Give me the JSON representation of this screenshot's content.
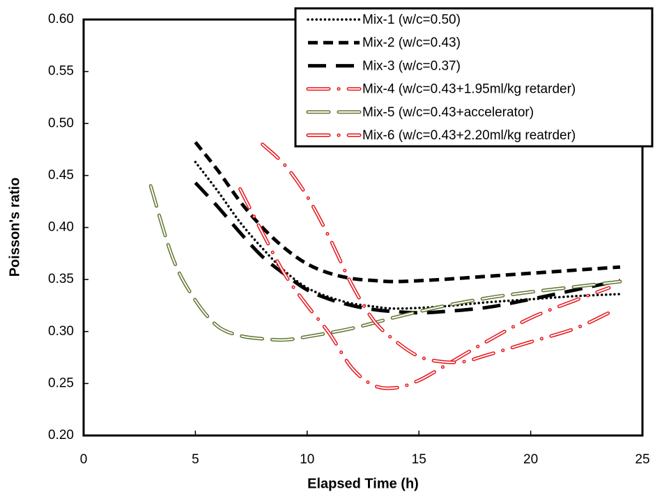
{
  "chart_data": {
    "type": "line",
    "x_label": "Elapsed Time (h)",
    "y_label": "Poisson's ratio",
    "xlim": [
      0,
      25
    ],
    "xticks": [
      0,
      5,
      10,
      15,
      20,
      25
    ],
    "ylim": [
      0.2,
      0.6
    ],
    "yticks": [
      {
        "value": 0.2,
        "label": "0.20"
      },
      {
        "value": 0.25,
        "label": "0.25"
      },
      {
        "value": 0.3,
        "label": "0.30"
      },
      {
        "value": 0.35,
        "label": "0.35"
      },
      {
        "value": 0.4,
        "label": "0.40"
      },
      {
        "value": 0.45,
        "label": "0.45"
      },
      {
        "value": 0.5,
        "label": "0.50"
      },
      {
        "value": 0.55,
        "label": "0.55"
      },
      {
        "value": 0.6,
        "label": "0.60"
      }
    ],
    "legend": "upper right",
    "series": [
      {
        "name": "Mix-1 (w/c=0.50)",
        "color": "#000000",
        "line_style": "dotted",
        "x": [
          5,
          6,
          7,
          8,
          9,
          10,
          11,
          12,
          13,
          14,
          16,
          18,
          20,
          22,
          24
        ],
        "values": [
          0.463,
          0.435,
          0.405,
          0.38,
          0.358,
          0.342,
          0.333,
          0.327,
          0.324,
          0.322,
          0.324,
          0.328,
          0.331,
          0.334,
          0.336
        ]
      },
      {
        "name": "Mix-2 (w/c=0.43)",
        "color": "#000000",
        "line_style": "dashed",
        "x": [
          5,
          6,
          7,
          8,
          9,
          10,
          11,
          12,
          13,
          14,
          16,
          18,
          20,
          22,
          24
        ],
        "values": [
          0.482,
          0.455,
          0.425,
          0.4,
          0.38,
          0.365,
          0.356,
          0.351,
          0.349,
          0.348,
          0.35,
          0.353,
          0.356,
          0.359,
          0.362
        ]
      },
      {
        "name": "Mix-3 (w/c=0.37)",
        "color": "#000000",
        "line_style": "long-dash",
        "x": [
          5,
          6,
          7,
          8,
          9,
          10,
          11,
          12,
          13,
          14,
          15,
          16,
          18,
          20,
          22,
          24
        ],
        "values": [
          0.443,
          0.42,
          0.395,
          0.372,
          0.355,
          0.34,
          0.331,
          0.325,
          0.321,
          0.319,
          0.318,
          0.319,
          0.323,
          0.331,
          0.34,
          0.349
        ]
      },
      {
        "name": "Mix-4 (w/c=0.43+1.95ml/kg retarder)",
        "color": "#e8141b",
        "line_style": "double-dash-dot",
        "x": [
          7,
          8,
          9,
          10,
          11,
          12,
          13,
          14,
          15,
          16,
          18,
          20,
          22,
          23.5
        ],
        "values": [
          0.437,
          0.395,
          0.355,
          0.325,
          0.298,
          0.265,
          0.248,
          0.246,
          0.253,
          0.265,
          0.29,
          0.313,
          0.33,
          0.342
        ]
      },
      {
        "name": "Mix-5 (w/c=0.43+accelerator)",
        "color": "#5f7530",
        "line_style": "double-dash",
        "x": [
          3,
          4,
          5,
          6,
          7,
          8,
          9,
          10,
          12,
          14,
          16,
          18,
          20,
          22,
          24
        ],
        "values": [
          0.44,
          0.37,
          0.33,
          0.305,
          0.296,
          0.293,
          0.292,
          0.295,
          0.303,
          0.314,
          0.324,
          0.332,
          0.338,
          0.343,
          0.348
        ]
      },
      {
        "name": "Mix-6 (w/c=0.43+2.20ml/kg reatrder)",
        "color": "#e8141b",
        "line_style": "double-dash-dot",
        "x": [
          8,
          9,
          10,
          11,
          12,
          13,
          14,
          15,
          16,
          17,
          18,
          20,
          22,
          23.5
        ],
        "values": [
          0.48,
          0.46,
          0.43,
          0.39,
          0.345,
          0.31,
          0.29,
          0.276,
          0.271,
          0.271,
          0.277,
          0.29,
          0.303,
          0.318
        ]
      }
    ]
  }
}
